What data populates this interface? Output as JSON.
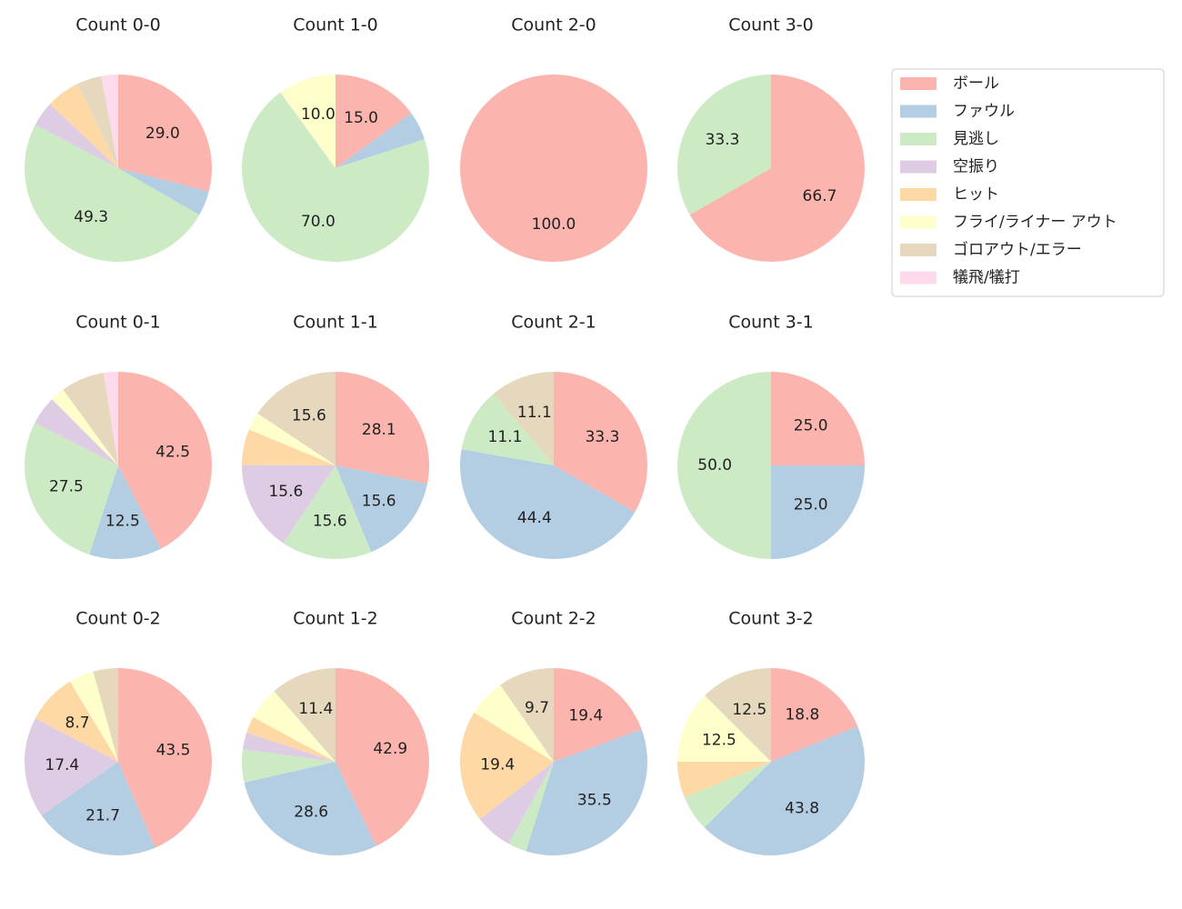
{
  "legend": {
    "categories": [
      "ボール",
      "ファウル",
      "見逃し",
      "空振り",
      "ヒット",
      "フライ/ライナー アウト",
      "ゴロアウト/エラー",
      "犠飛/犠打"
    ],
    "colors": [
      "#fbb4ae",
      "#b3cde3",
      "#ccebc5",
      "#decbe4",
      "#fed9a6",
      "#ffffcc",
      "#e5d8bd",
      "#fddaec"
    ]
  },
  "chart_data": [
    {
      "type": "pie",
      "title": "Count 0-0",
      "values": [
        29.0,
        4.3,
        49.3,
        4.3,
        5.8,
        0,
        4.3,
        2.9
      ],
      "value_labels": [
        "29.0",
        null,
        "49.3",
        null,
        null,
        null,
        null,
        null
      ]
    },
    {
      "type": "pie",
      "title": "Count 1-0",
      "values": [
        15.0,
        5.0,
        70.0,
        0,
        0,
        10.0,
        0,
        0
      ],
      "value_labels": [
        "15.0",
        null,
        "70.0",
        null,
        null,
        "10.0",
        null,
        null
      ]
    },
    {
      "type": "pie",
      "title": "Count 2-0",
      "values": [
        100.0,
        0,
        0,
        0,
        0,
        0,
        0,
        0
      ],
      "value_labels": [
        "100.0",
        null,
        null,
        null,
        null,
        null,
        null,
        null
      ]
    },
    {
      "type": "pie",
      "title": "Count 3-0",
      "values": [
        66.7,
        0,
        33.3,
        0,
        0,
        0,
        0,
        0
      ],
      "value_labels": [
        "66.7",
        null,
        "33.3",
        null,
        null,
        null,
        null,
        null
      ]
    },
    {
      "type": "pie",
      "title": "Count 0-1",
      "values": [
        42.5,
        12.5,
        27.5,
        5.0,
        0,
        2.5,
        7.5,
        2.5
      ],
      "value_labels": [
        "42.5",
        "12.5",
        "27.5",
        null,
        null,
        null,
        null,
        null
      ]
    },
    {
      "type": "pie",
      "title": "Count 1-1",
      "values": [
        28.1,
        15.6,
        15.6,
        15.6,
        6.2,
        3.1,
        15.6,
        0
      ],
      "value_labels": [
        "28.1",
        "15.6",
        "15.6",
        "15.6",
        null,
        null,
        "15.6",
        null
      ]
    },
    {
      "type": "pie",
      "title": "Count 2-1",
      "values": [
        33.3,
        44.4,
        11.1,
        0,
        0,
        0,
        11.1,
        0
      ],
      "value_labels": [
        "33.3",
        "44.4",
        "11.1",
        null,
        null,
        null,
        "11.1",
        null
      ]
    },
    {
      "type": "pie",
      "title": "Count 3-1",
      "values": [
        25.0,
        25.0,
        50.0,
        0,
        0,
        0,
        0,
        0
      ],
      "value_labels": [
        "25.0",
        "25.0",
        "50.0",
        null,
        null,
        null,
        null,
        null
      ]
    },
    {
      "type": "pie",
      "title": "Count 0-2",
      "values": [
        43.5,
        21.7,
        0,
        17.4,
        8.7,
        4.3,
        4.3,
        0
      ],
      "value_labels": [
        "43.5",
        "21.7",
        null,
        "17.4",
        "8.7",
        null,
        null,
        null
      ]
    },
    {
      "type": "pie",
      "title": "Count 1-2",
      "values": [
        42.9,
        28.6,
        5.7,
        2.9,
        2.9,
        5.7,
        11.4,
        0
      ],
      "value_labels": [
        "42.9",
        "28.6",
        null,
        null,
        null,
        null,
        "11.4",
        null
      ]
    },
    {
      "type": "pie",
      "title": "Count 2-2",
      "values": [
        19.4,
        35.5,
        3.2,
        6.5,
        19.4,
        6.5,
        9.7,
        0
      ],
      "value_labels": [
        "19.4",
        "35.5",
        null,
        null,
        "19.4",
        null,
        "9.7",
        null
      ]
    },
    {
      "type": "pie",
      "title": "Count 3-2",
      "values": [
        18.8,
        43.8,
        6.2,
        0,
        6.2,
        12.5,
        12.5,
        0
      ],
      "value_labels": [
        "18.8",
        "43.8",
        null,
        null,
        null,
        "12.5",
        "12.5",
        null
      ]
    }
  ]
}
